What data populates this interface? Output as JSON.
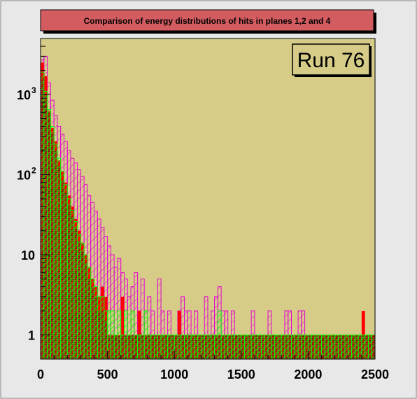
{
  "chart_data": {
    "type": "histogram",
    "title": "Comparison of energy distributions of hits in planes 1,2 and 4",
    "annotation": "Run 76",
    "xlabel": "",
    "ylabel": "",
    "xlim": [
      0,
      2500
    ],
    "ylim": [
      0.5,
      5000
    ],
    "yscale": "log",
    "x_ticks": [
      {
        "value": 0,
        "label": "0"
      },
      {
        "value": 500,
        "label": "500"
      },
      {
        "value": 1000,
        "label": "1000"
      },
      {
        "value": 1500,
        "label": "1500"
      },
      {
        "value": 2000,
        "label": "2000"
      },
      {
        "value": 2500,
        "label": "2500"
      }
    ],
    "y_ticks": [
      {
        "value": 1,
        "label": "1"
      },
      {
        "value": 10,
        "label": "10"
      },
      {
        "value": 100,
        "label": "10",
        "sup": "2"
      },
      {
        "value": 1000,
        "label": "10",
        "sup": "3"
      }
    ],
    "bin_width": 25,
    "colors": {
      "frame_bg": "#d6cc87",
      "title_box": "#d35c60",
      "plane1": "#ff0000",
      "plane2_brick": "#b83214",
      "plane2_mortar": "#7a1a08",
      "plane3": "#00ff00",
      "plane4": "#e500d2"
    },
    "series": [
      {
        "style": "solid",
        "color": "#ff0000",
        "x": [
          0,
          25,
          50,
          75,
          100,
          125,
          150,
          175,
          200,
          225,
          250,
          275,
          300,
          325,
          350,
          375,
          400,
          425,
          450,
          475,
          500,
          525,
          550,
          575,
          600,
          625,
          650,
          675,
          700,
          725,
          750,
          775,
          800,
          825,
          850,
          875,
          900,
          925,
          950,
          975,
          1000,
          1025,
          1050,
          1075,
          1100,
          1125,
          1150,
          1175,
          1200,
          1225,
          1250,
          1275,
          1300,
          1325,
          1350,
          1375,
          1400,
          1425,
          1450,
          1475,
          1500,
          1525,
          1550,
          1575,
          1600,
          1625,
          1650,
          1675,
          1700,
          1725,
          1750,
          1775,
          1800,
          1825,
          1850,
          1875,
          1900,
          1925,
          1950,
          1975,
          2000,
          2025,
          2050,
          2075,
          2100,
          2125,
          2150,
          2175,
          2200,
          2225,
          2250,
          2275,
          2300,
          2325,
          2350,
          2375,
          2400,
          2425,
          2450,
          2475
        ],
        "values": [
          2500,
          1700,
          620,
          380,
          260,
          150,
          110,
          80,
          55,
          40,
          28,
          20,
          14,
          10,
          7,
          5,
          4,
          3,
          4,
          3,
          1,
          1,
          1,
          1,
          3,
          1,
          0,
          1,
          1,
          2,
          1,
          1,
          1,
          1,
          1,
          1,
          0,
          0,
          0,
          1,
          0,
          2,
          1,
          1,
          1,
          1,
          1,
          0,
          0,
          1,
          0,
          0,
          0,
          0,
          1,
          0,
          0,
          1,
          0,
          0,
          0,
          0,
          0,
          0,
          0,
          1,
          0,
          0,
          1,
          0,
          0,
          0,
          0,
          1,
          0,
          0,
          1,
          0,
          0,
          0,
          0,
          0,
          0,
          0,
          0,
          0,
          0,
          0,
          0,
          0,
          0,
          0,
          0,
          0,
          0,
          0,
          2,
          0,
          0,
          0
        ]
      },
      {
        "style": "brick",
        "color": "#b83214",
        "x": [
          0,
          25,
          50,
          75,
          100,
          125,
          150,
          175,
          200,
          225,
          250,
          275,
          300,
          325,
          350,
          375,
          400,
          425,
          450,
          475,
          500,
          525,
          550,
          575,
          600,
          625,
          650,
          675,
          700,
          725,
          750,
          775,
          800,
          825,
          850,
          875,
          900,
          925,
          950,
          975,
          1000,
          1025,
          1050,
          1075,
          1100,
          1125,
          1150,
          1175,
          1200,
          1225,
          1250,
          1275,
          1300,
          1325,
          1350,
          1375,
          1400,
          1425,
          1450,
          1475,
          1500,
          1525,
          1550,
          1575,
          1600,
          1625,
          1650,
          1675,
          1700,
          1725,
          1750,
          1775,
          1800,
          1825,
          1850,
          1875,
          1900,
          1925,
          1950,
          1975,
          2000,
          2025,
          2050,
          2075,
          2100,
          2125,
          2150,
          2175,
          2200,
          2225,
          2250,
          2275,
          2300,
          2325,
          2350,
          2375,
          2400,
          2425,
          2450,
          2475
        ],
        "values": [
          1600,
          1000,
          600,
          330,
          200,
          130,
          85,
          60,
          42,
          30,
          22,
          15,
          11,
          8,
          5,
          4,
          3,
          2,
          2,
          1.5,
          1,
          1,
          1,
          1,
          1,
          1,
          1,
          1,
          1,
          1,
          1,
          1,
          1,
          1,
          1,
          1,
          1,
          1,
          1,
          1,
          1,
          1,
          1,
          1,
          1,
          1,
          1,
          1,
          1,
          1,
          1,
          1,
          1,
          1,
          1,
          1,
          1,
          1,
          1,
          1,
          1,
          1,
          1,
          1,
          1,
          1,
          1,
          1,
          1,
          1,
          1,
          1,
          1,
          1,
          1,
          1,
          1,
          1,
          1,
          1,
          1,
          1,
          1,
          1,
          1,
          1,
          1,
          1,
          1,
          1,
          1,
          1,
          1,
          1,
          1,
          1,
          1,
          1,
          1,
          1
        ]
      },
      {
        "style": "hatch-green",
        "color": "#00ff00",
        "x": [
          0,
          25,
          50,
          75,
          100,
          125,
          150,
          175,
          200,
          225,
          250,
          275,
          300,
          325,
          350,
          375,
          400,
          425,
          450,
          475,
          500,
          525,
          550,
          575,
          600,
          625,
          650,
          675,
          700,
          725,
          750,
          775,
          800,
          825,
          850,
          875,
          900,
          925,
          950,
          975,
          1000,
          1025,
          1050,
          1075,
          1100,
          1125,
          1150,
          1175,
          1200,
          1225,
          1250,
          1275,
          1300,
          1325,
          1350,
          1375,
          1400,
          1425,
          1450,
          1475,
          1500,
          1525,
          1550,
          1575,
          1600,
          1625,
          1650,
          1675,
          1700,
          1725,
          1750,
          1775,
          1800,
          1825,
          1850,
          1875,
          1900,
          1925,
          1950,
          1975,
          2000,
          2025,
          2050,
          2075,
          2100,
          2125,
          2150,
          2175,
          2200,
          2225,
          2250,
          2275,
          2300,
          2325,
          2350,
          2375,
          2400,
          2425,
          2450,
          2475
        ],
        "values": [
          1900,
          1100,
          650,
          400,
          240,
          160,
          110,
          75,
          50,
          36,
          26,
          18,
          14,
          10,
          7,
          5,
          4,
          3,
          3,
          2,
          2,
          2,
          1,
          2,
          1,
          2,
          1,
          2,
          1,
          1,
          1,
          2,
          1,
          1,
          1,
          1,
          1,
          1,
          1,
          1,
          1,
          1,
          1,
          1,
          1,
          1,
          1,
          1,
          1,
          1,
          1,
          1,
          1,
          2,
          1,
          1,
          1,
          1,
          1,
          1,
          1,
          1,
          1,
          1,
          1,
          1,
          1,
          1,
          1,
          1,
          1,
          1,
          1,
          1,
          1,
          1,
          1,
          1,
          1,
          1,
          1,
          1,
          1,
          1,
          1,
          1,
          1,
          1,
          1,
          1,
          1,
          1,
          1,
          1,
          1,
          1,
          1,
          1,
          1,
          1
        ]
      },
      {
        "style": "hatch-magenta",
        "color": "#e500d2",
        "x": [
          0,
          25,
          50,
          75,
          100,
          125,
          150,
          175,
          200,
          225,
          250,
          275,
          300,
          325,
          350,
          375,
          400,
          425,
          450,
          475,
          500,
          525,
          550,
          575,
          600,
          625,
          650,
          675,
          700,
          725,
          750,
          775,
          800,
          825,
          850,
          875,
          900,
          925,
          950,
          975,
          1000,
          1025,
          1050,
          1075,
          1100,
          1125,
          1150,
          1175,
          1200,
          1225,
          1250,
          1275,
          1300,
          1325,
          1350,
          1375,
          1400,
          1425,
          1450,
          1475,
          1500,
          1525,
          1550,
          1575,
          1600,
          1625,
          1650,
          1675,
          1700,
          1725,
          1750,
          1775,
          1800,
          1825,
          1850,
          1875,
          1900,
          1925,
          1950,
          1975,
          2000,
          2025,
          2050,
          2075,
          2100,
          2125,
          2150,
          2175,
          2200,
          2225,
          2250,
          2275,
          2300,
          2325,
          2350,
          2375,
          2400,
          2425,
          2450,
          2475
        ],
        "values": [
          2700,
          3000,
          1400,
          850,
          550,
          400,
          320,
          260,
          200,
          160,
          140,
          115,
          95,
          75,
          55,
          45,
          35,
          28,
          22,
          17,
          13,
          10,
          7,
          9,
          6,
          5,
          3,
          4,
          6,
          2,
          5,
          2,
          3,
          2,
          1,
          5,
          2,
          1,
          2,
          1,
          1,
          2,
          3,
          2,
          2,
          1,
          2,
          1,
          1,
          3,
          1,
          2,
          3,
          4,
          2,
          2,
          1,
          2,
          1,
          1,
          1,
          1,
          1,
          2,
          1,
          1,
          1,
          1,
          2,
          1,
          1,
          1,
          1,
          2,
          2,
          1,
          1,
          2,
          2,
          1,
          1,
          1,
          1,
          1,
          1,
          1,
          1,
          1,
          1,
          1,
          1,
          1,
          1,
          1,
          1,
          1,
          1,
          1,
          1,
          1
        ]
      }
    ]
  }
}
